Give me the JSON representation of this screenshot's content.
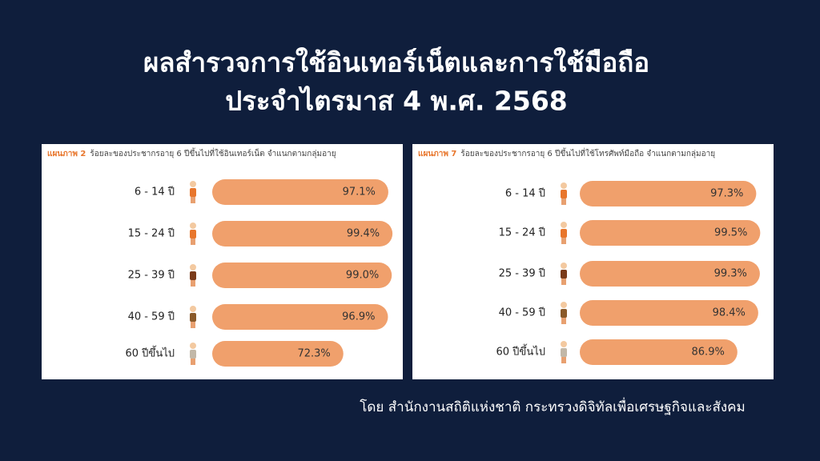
{
  "title": [
    "ผลสำรวจการใช้อินเทอร์เน็ตและการใช้มือถือ",
    "ประจำไตรมาส 4 พ.ศ. 2568"
  ],
  "source": "โดย สำนักงานสถิติแห่งชาติ กระทรวงดิจิทัลเพื่อเศรษฐกิจและสังคม",
  "chart_data": [
    {
      "type": "bar",
      "figure_label": "แผนภาพ 2",
      "title": "ร้อยละของประชากรอายุ 6 ปีขึ้นไปที่ใช้อินเทอร์เน็ต จำแนกตามกลุ่มอายุ",
      "categories": [
        "6 - 14 ปี",
        "15 - 24 ปี",
        "25 - 39 ปี",
        "40 - 59 ปี",
        "60 ปีขึ้นไป"
      ],
      "values": [
        97.1,
        99.4,
        99.0,
        96.9,
        72.3
      ],
      "value_labels": [
        "97.1%",
        "99.4%",
        "99.0%",
        "96.9%",
        "72.3%"
      ],
      "color": "#f0a06c"
    },
    {
      "type": "bar",
      "figure_label": "แผนภาพ 7",
      "title": "ร้อยละของประชากรอายุ 6 ปีขึ้นไปที่ใช้โทรศัพท์มือถือ จำแนกตามกลุ่มอายุ",
      "categories": [
        "6 - 14 ปี",
        "15 - 24 ปี",
        "25 - 39 ปี",
        "40 - 59 ปี",
        "60 ปีขึ้นไป"
      ],
      "values": [
        97.3,
        99.5,
        99.3,
        98.4,
        86.9
      ],
      "value_labels": [
        "97.3%",
        "99.5%",
        "99.3%",
        "98.4%",
        "86.9%"
      ],
      "color": "#f0a06c"
    }
  ]
}
